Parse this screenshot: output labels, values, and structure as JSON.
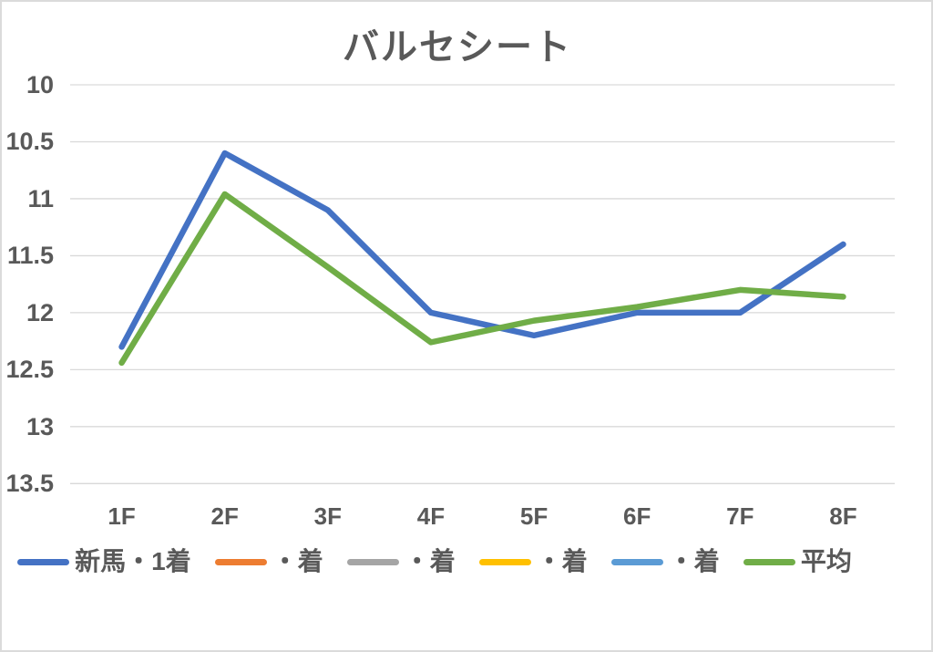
{
  "window": {
    "background": "#FFFFFF",
    "border_color": "#DBDBDB"
  },
  "colors": {
    "text": "#595959",
    "gridline": "#D9D9D9"
  },
  "chart_data": {
    "type": "line",
    "title": "バルセシート",
    "categories": [
      "1F",
      "2F",
      "3F",
      "4F",
      "5F",
      "6F",
      "7F",
      "8F"
    ],
    "series": [
      {
        "key": "debut-win",
        "name": "新馬・1着",
        "color": "#4472C4",
        "values": [
          12.3,
          10.6,
          11.1,
          12.0,
          12.2,
          12.0,
          12.0,
          11.4
        ]
      },
      {
        "key": "blank-2",
        "name": "・着",
        "color": "#ED7D31",
        "values": []
      },
      {
        "key": "blank-3",
        "name": "・着",
        "color": "#A5A5A5",
        "values": []
      },
      {
        "key": "blank-4",
        "name": "・着",
        "color": "#FFC000",
        "values": []
      },
      {
        "key": "blank-5",
        "name": "・着",
        "color": "#5B9BD5",
        "values": []
      },
      {
        "key": "average",
        "name": "平均",
        "color": "#70AD47",
        "values": [
          12.44,
          10.96,
          11.6,
          12.26,
          12.07,
          11.95,
          11.8,
          11.86
        ]
      }
    ],
    "xlabel": "",
    "ylabel": "",
    "y_axis": {
      "min": 10,
      "max": 13.5,
      "step": 0.5,
      "reversed": true,
      "tick_labels": [
        "10",
        "10.5",
        "11",
        "11.5",
        "12",
        "12.5",
        "13",
        "13.5"
      ]
    },
    "grid": true,
    "legend_position": "bottom"
  }
}
